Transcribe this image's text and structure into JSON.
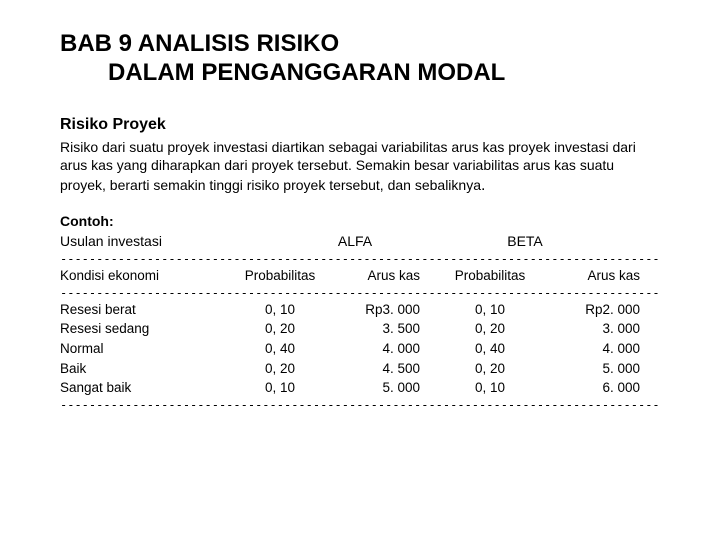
{
  "title_line1": "BAB 9  ANALISIS RISIKO",
  "title_line2": "DALAM PENGANGGARAN MODAL",
  "section_heading": "Risiko Proyek",
  "body_text": "Risiko dari suatu proyek investasi diartikan sebagai variabilitas arus kas proyek investasi dari arus kas yang diharapkan dari proyek tersebut. Semakin besar variabilitas arus kas suatu proyek, berarti semakin tinggi risiko proyek tersebut, dan sebaliknya",
  "example_label": "Contoh:",
  "proposal_label": "Usulan investasi",
  "group_alfa": "ALFA",
  "group_beta": "BETA",
  "columns": {
    "kondisi": "Kondisi ekonomi",
    "probabilitas": "Probabilitas",
    "arus_kas": "Arus kas"
  },
  "rows": [
    {
      "kondisi": "Resesi berat",
      "prob_a": "0, 10",
      "arus_a": "Rp3. 000",
      "prob_b": "0, 10",
      "arus_b": "Rp2. 000"
    },
    {
      "kondisi": "Resesi sedang",
      "prob_a": "0, 20",
      "arus_a": "3. 500",
      "prob_b": "0, 20",
      "arus_b": "3. 000"
    },
    {
      "kondisi": "Normal",
      "prob_a": "0, 40",
      "arus_a": "4. 000",
      "prob_b": "0, 40",
      "arus_b": "4. 000"
    },
    {
      "kondisi": "Baik",
      "prob_a": "0, 20",
      "arus_a": "4. 500",
      "prob_b": "0, 20",
      "arus_b": "5. 000"
    },
    {
      "kondisi": "Sangat baik",
      "prob_a": "0, 10",
      "arus_a": "5. 000",
      "prob_b": "0, 10",
      "arus_b": "6. 000"
    }
  ],
  "dash_line": "--------------------------------------------------------------------------------------------------------------------------"
}
